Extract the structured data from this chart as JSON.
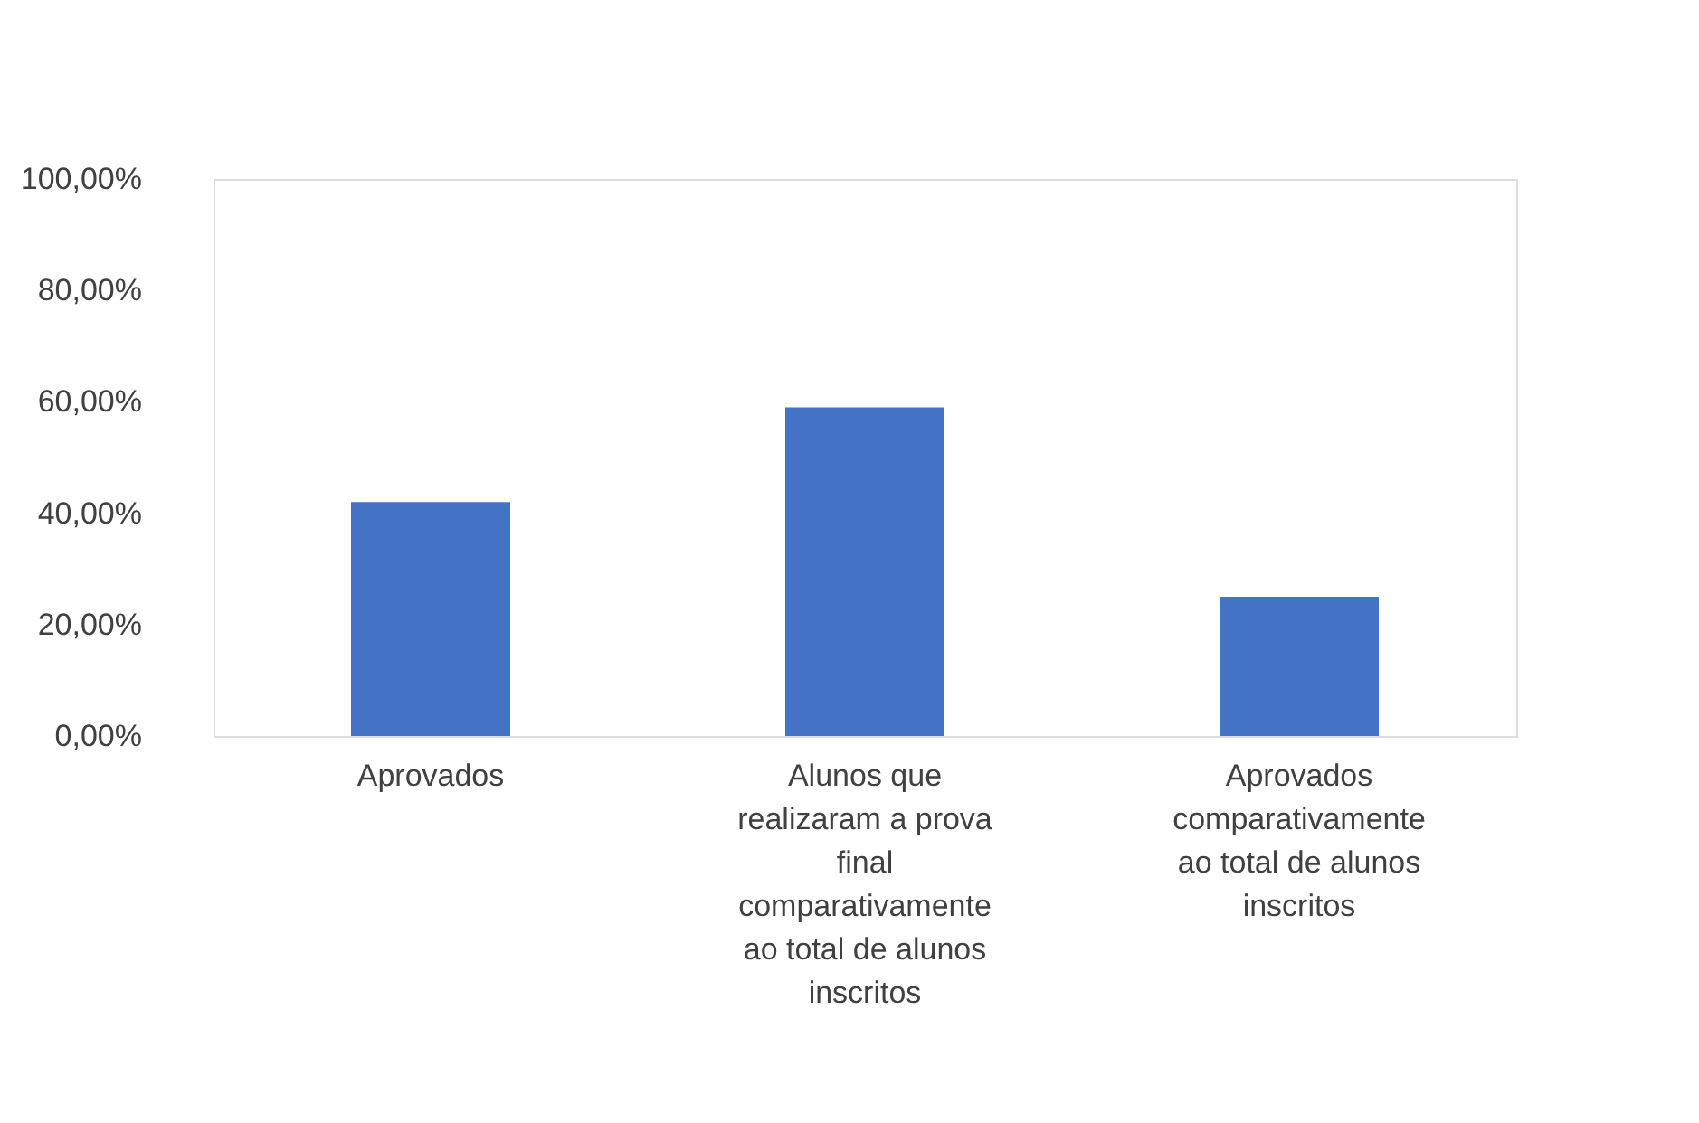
{
  "chart_data": {
    "type": "bar",
    "categories": [
      "Aprovados",
      "Alunos que realizaram a prova final comparativamente ao total de alunos inscritos",
      "Aprovados comparativamente ao total de alunos inscritos"
    ],
    "values": [
      42,
      59,
      25
    ],
    "color": "#4472c4",
    "ylim": [
      0,
      100
    ],
    "yticks": [
      {
        "value": 0,
        "label": "0,00%"
      },
      {
        "value": 20,
        "label": "20,00%"
      },
      {
        "value": 40,
        "label": "40,00%"
      },
      {
        "value": 60,
        "label": "60,00%"
      },
      {
        "value": 80,
        "label": "80,00%"
      },
      {
        "value": 100,
        "label": "100,00%"
      }
    ],
    "grid": false
  }
}
